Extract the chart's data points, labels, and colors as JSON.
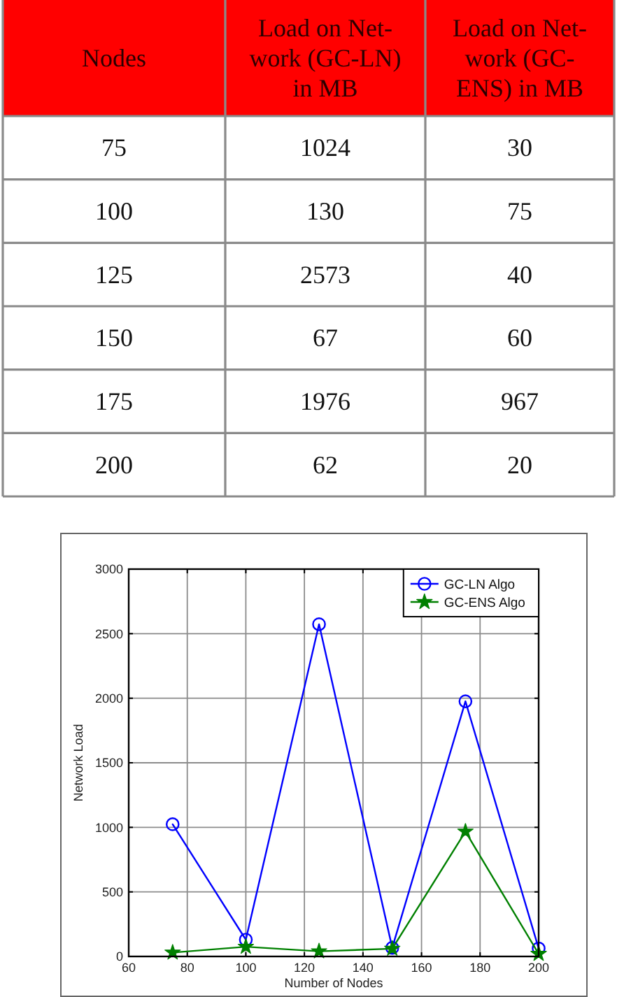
{
  "chart_data": [
    {
      "type": "heatmap",
      "ylabel": "Nodes",
      "categories": [
        "Load on Net-work (GC-LN) in MB",
        "Load on Net-work (GC-ENS) in MB"
      ],
      "y_categories": [
        "75",
        "100",
        "125",
        "150",
        "175",
        "200"
      ],
      "cells": [
        [
          1024,
          30
        ],
        [
          130,
          75
        ],
        [
          2573,
          40
        ],
        [
          67,
          60
        ],
        [
          1976,
          967
        ],
        [
          62,
          20
        ]
      ],
      "data_labels": true
    },
    {
      "type": "line",
      "xlabel": "Number of Nodes",
      "ylabel": "Network Load",
      "x": [
        75,
        100,
        125,
        150,
        175,
        200
      ],
      "series": [
        {
          "name": "GC-LN Algo",
          "color": "#0000ff",
          "marker": "circle",
          "values": [
            1024,
            130,
            2573,
            67,
            1976,
            62
          ]
        },
        {
          "name": "GC-ENS Algo",
          "color": "#008000",
          "marker": "star",
          "values": [
            30,
            75,
            40,
            60,
            967,
            20
          ]
        }
      ],
      "xlim": [
        60,
        200
      ],
      "ylim": [
        0,
        3000
      ],
      "xticks": [
        60,
        80,
        100,
        120,
        140,
        160,
        180,
        200
      ],
      "yticks": [
        0,
        500,
        1000,
        1500,
        2000,
        2500,
        3000
      ],
      "grid": true,
      "legend": "top right"
    }
  ]
}
